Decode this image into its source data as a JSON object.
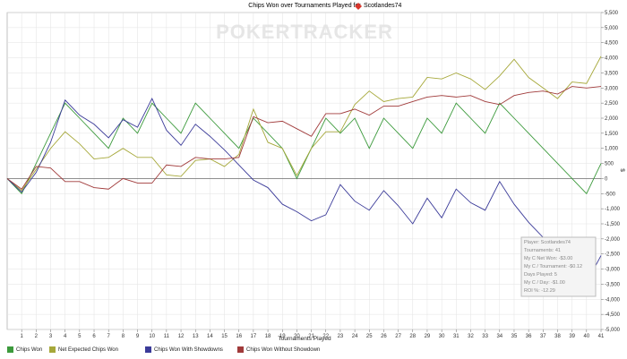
{
  "header": {
    "title": "Chips Won over Tournaments Played for",
    "player": "Scotlandes74",
    "flag_color": "#d8342a"
  },
  "watermark": "POKERTRACKER",
  "stats_box": [
    "Player: Scotlandes74",
    "Tournaments: 41",
    "My C Net Won: -$3.00",
    "My C / Tournament: -$0.12",
    "Days Played: 5",
    "My C / Day: -$1.00",
    "ROI %: -12.29"
  ],
  "chart_data": {
    "type": "line",
    "xlabel": "Tournaments Played",
    "ylabel": "$",
    "x": [
      0,
      1,
      2,
      3,
      4,
      5,
      6,
      7,
      8,
      9,
      10,
      11,
      12,
      13,
      14,
      15,
      16,
      17,
      18,
      19,
      20,
      21,
      22,
      23,
      24,
      25,
      26,
      27,
      28,
      29,
      30,
      31,
      32,
      33,
      34,
      35,
      36,
      37,
      38,
      39,
      40,
      41
    ],
    "xticks": [
      1,
      2,
      3,
      4,
      5,
      6,
      7,
      8,
      9,
      10,
      11,
      12,
      13,
      14,
      15,
      16,
      17,
      18,
      19,
      20,
      21,
      22,
      23,
      24,
      25,
      26,
      27,
      28,
      29,
      30,
      31,
      32,
      33,
      34,
      35,
      36,
      37,
      38,
      39,
      40,
      41
    ],
    "ylim": [
      -5000,
      5500
    ],
    "yticks": [
      -5000,
      -4500,
      -4000,
      -3500,
      -3000,
      -2500,
      -2000,
      -1500,
      -1000,
      -500,
      0,
      500,
      1000,
      1500,
      2000,
      2500,
      3000,
      3500,
      4000,
      4500,
      5000,
      5500
    ],
    "ytick_labels": [
      "-5,000",
      "-4,500",
      "-4,000",
      "-3,500",
      "-3,000",
      "-2,500",
      "-2,000",
      "-1,500",
      "-1,000",
      "-500",
      "0",
      "500",
      "1,000",
      "1,500",
      "2,000",
      "2,500",
      "3,000",
      "3,500",
      "4,000",
      "4,500",
      "5,000",
      "5,500"
    ],
    "legend_position": "bottom",
    "series": [
      {
        "name": "Chips Won",
        "color": "#3c9a3c",
        "values": [
          0,
          -500,
          500,
          1500,
          2500,
          2000,
          1500,
          1000,
          2000,
          1500,
          2500,
          2000,
          1500,
          2500,
          2000,
          1500,
          1000,
          2000,
          1500,
          1000,
          0,
          1000,
          2000,
          1500,
          2000,
          1000,
          2000,
          1500,
          1000,
          2000,
          1500,
          2500,
          2000,
          1500,
          2500,
          2000,
          1500,
          1000,
          500,
          0,
          -500,
          500
        ]
      },
      {
        "name": "Net Expected Chips Won",
        "color": "#a6a83a",
        "values": [
          0,
          -400,
          300,
          1000,
          1550,
          1150,
          650,
          700,
          1000,
          700,
          700,
          120,
          70,
          600,
          650,
          400,
          800,
          2300,
          1200,
          1000,
          100,
          1000,
          1550,
          1550,
          2450,
          2900,
          2550,
          2650,
          2700,
          3350,
          3300,
          3500,
          3300,
          2950,
          3400,
          3950,
          3350,
          3000,
          2650,
          3200,
          3150,
          4050
        ]
      },
      {
        "name": "Chips Won With Showdowns",
        "color": "#3b3b99",
        "values": [
          0,
          -450,
          200,
          1200,
          2600,
          2100,
          1800,
          1350,
          1950,
          1700,
          2650,
          1600,
          1100,
          1800,
          1400,
          950,
          450,
          -50,
          -300,
          -850,
          -1100,
          -1400,
          -1200,
          -200,
          -750,
          -1050,
          -400,
          -900,
          -1500,
          -650,
          -1300,
          -350,
          -800,
          -1050,
          -100,
          -850,
          -1450,
          -1950,
          -2200,
          -3000,
          -3450,
          -2550
        ]
      },
      {
        "name": "Chips Won Without Showdown",
        "color": "#a03a3a",
        "values": [
          0,
          -350,
          400,
          350,
          -100,
          -100,
          -300,
          -350,
          0,
          -150,
          -150,
          450,
          400,
          700,
          650,
          650,
          700,
          2050,
          1850,
          1900,
          1650,
          1400,
          2150,
          2150,
          2300,
          2100,
          2400,
          2400,
          2550,
          2700,
          2750,
          2700,
          2750,
          2550,
          2450,
          2750,
          2850,
          2900,
          2800,
          3050,
          3000,
          3050
        ]
      }
    ]
  }
}
